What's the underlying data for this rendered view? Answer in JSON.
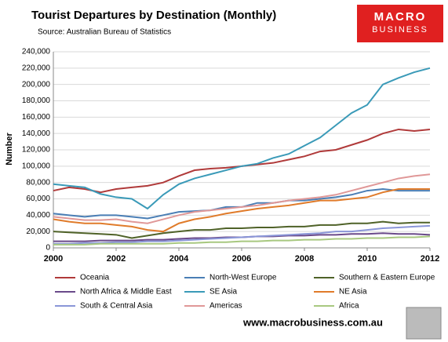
{
  "chart_data": {
    "type": "line",
    "title": "Tourist Departures by Destination (Monthly)",
    "subtitle": "Source: Australian Bureau of Statistics",
    "ylabel": "Number",
    "logo": {
      "line1": "MACRO",
      "line2": "BUSINESS"
    },
    "footer": "www.macrobusiness.com.au",
    "grid": true,
    "xlim": [
      2000,
      2012
    ],
    "xticks": [
      2000,
      2002,
      2004,
      2006,
      2008,
      2010,
      2012
    ],
    "ylim": [
      0,
      240000
    ],
    "yticks": [
      0,
      {
        "value": 20000,
        "label": "20,000"
      },
      {
        "value": 40000,
        "label": "40,000"
      },
      {
        "value": 60000,
        "label": "60,000"
      },
      {
        "value": 80000,
        "label": "80,000"
      },
      {
        "value": 100000,
        "label": "100,000"
      },
      {
        "value": 120000,
        "label": "120,000"
      },
      {
        "value": 140000,
        "label": "140,000"
      },
      {
        "value": 160000,
        "label": "160,000"
      },
      {
        "value": 180000,
        "label": "180,000"
      },
      {
        "value": 200000,
        "label": "200,000"
      },
      {
        "value": 220000,
        "label": "220,000"
      },
      {
        "value": 240000,
        "label": "240,000"
      }
    ],
    "x": [
      2000,
      2000.5,
      2001,
      2001.5,
      2002,
      2002.5,
      2003,
      2003.5,
      2004,
      2004.5,
      2005,
      2005.5,
      2006,
      2006.5,
      2007,
      2007.5,
      2008,
      2008.5,
      2009,
      2009.5,
      2010,
      2010.5,
      2011,
      2011.5,
      2012
    ],
    "series": [
      {
        "name": "Oceania",
        "color": "#b03a3a",
        "values": [
          70000,
          74000,
          72000,
          68000,
          72000,
          74000,
          76000,
          80000,
          88000,
          95000,
          97000,
          98000,
          100000,
          102000,
          104000,
          108000,
          112000,
          118000,
          120000,
          126000,
          132000,
          140000,
          145000,
          143000,
          145000
        ]
      },
      {
        "name": "North-West Europe",
        "color": "#4a7eb5",
        "values": [
          42000,
          40000,
          38000,
          40000,
          40000,
          38000,
          36000,
          40000,
          44000,
          45000,
          46000,
          50000,
          50000,
          55000,
          55000,
          58000,
          58000,
          60000,
          62000,
          65000,
          70000,
          72000,
          70000,
          70000,
          70000
        ]
      },
      {
        "name": "Southern & Eastern Europe",
        "color": "#4f6228",
        "values": [
          20000,
          19000,
          18000,
          17000,
          16000,
          12000,
          15000,
          18000,
          20000,
          22000,
          22000,
          24000,
          24000,
          25000,
          25000,
          26000,
          26000,
          28000,
          28000,
          30000,
          30000,
          32000,
          30000,
          31000,
          31000
        ]
      },
      {
        "name": "North Africa & Middle East",
        "color": "#6a4a8a",
        "values": [
          8000,
          8000,
          8000,
          9000,
          9000,
          9000,
          10000,
          10000,
          11000,
          12000,
          12000,
          13000,
          13000,
          14000,
          14000,
          15000,
          15000,
          16000,
          16000,
          17000,
          17000,
          18000,
          17000,
          17000,
          16000
        ]
      },
      {
        "name": "SE Asia",
        "color": "#3a9ab8",
        "values": [
          78000,
          76000,
          74000,
          66000,
          62000,
          60000,
          48000,
          65000,
          78000,
          85000,
          90000,
          95000,
          100000,
          103000,
          110000,
          115000,
          125000,
          135000,
          150000,
          165000,
          175000,
          200000,
          208000,
          215000,
          220000
        ]
      },
      {
        "name": "NE Asia",
        "color": "#e07b2a",
        "values": [
          35000,
          32000,
          30000,
          30000,
          28000,
          26000,
          22000,
          20000,
          30000,
          35000,
          38000,
          42000,
          45000,
          48000,
          50000,
          52000,
          55000,
          58000,
          58000,
          60000,
          62000,
          68000,
          72000,
          72000,
          72000
        ]
      },
      {
        "name": "South & Central Asia",
        "color": "#8a96d8",
        "values": [
          5000,
          5000,
          6000,
          6000,
          7000,
          7000,
          8000,
          8000,
          9000,
          10000,
          11000,
          12000,
          13000,
          14000,
          15000,
          16000,
          17000,
          18000,
          20000,
          20000,
          22000,
          24000,
          25000,
          26000,
          27000
        ]
      },
      {
        "name": "Americas",
        "color": "#e09898",
        "values": [
          38000,
          36000,
          34000,
          34000,
          35000,
          32000,
          30000,
          35000,
          40000,
          44000,
          46000,
          48000,
          50000,
          52000,
          55000,
          58000,
          60000,
          62000,
          65000,
          70000,
          75000,
          80000,
          85000,
          88000,
          90000
        ]
      },
      {
        "name": "Africa",
        "color": "#a8c880",
        "values": [
          4000,
          4000,
          4000,
          5000,
          5000,
          5000,
          5000,
          5000,
          6000,
          6000,
          7000,
          7000,
          8000,
          8000,
          9000,
          9000,
          10000,
          10000,
          11000,
          11000,
          12000,
          12000,
          13000,
          13000,
          14000
        ]
      }
    ]
  }
}
